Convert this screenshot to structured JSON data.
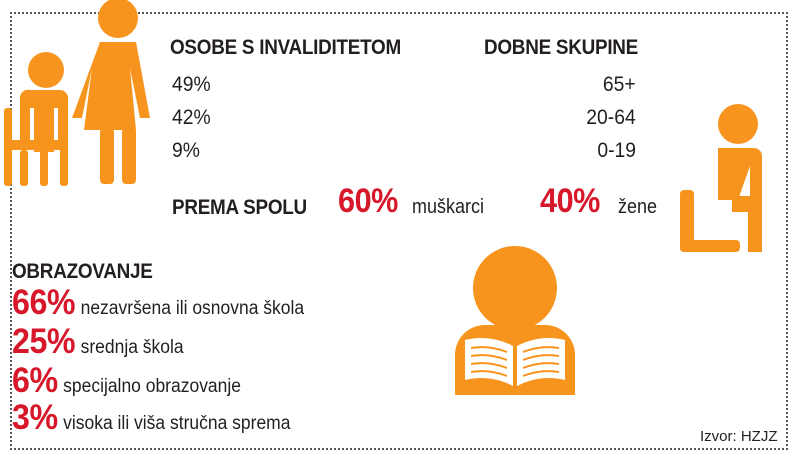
{
  "disability": {
    "heading": "OSOBE S INVALIDITETOM",
    "values": [
      "49%",
      "42%",
      "9%"
    ]
  },
  "age_groups": {
    "heading": "DOBNE SKUPINE",
    "values": [
      "65+",
      "20-64",
      "0-19"
    ]
  },
  "gender": {
    "heading": "PREMA SPOLU",
    "male_pct": "60%",
    "male_label": "muškarci",
    "female_pct": "40%",
    "female_label": "žene"
  },
  "education": {
    "heading": "OBRAZOVANJE",
    "items": [
      {
        "pct": "66%",
        "label": "nezavršena ili osnovna škola"
      },
      {
        "pct": "25%",
        "label": "srednja škola"
      },
      {
        "pct": "6%",
        "label": "specijalno obrazovanje"
      },
      {
        "pct": "3%",
        "label": "visoka ili viša stručna sprema"
      }
    ]
  },
  "source": "Izvor: HZJZ",
  "colors": {
    "accent_orange": "#f7941d",
    "accent_red": "#d7182a",
    "text": "#231f20"
  },
  "icons": [
    "wheelchair-user-icon",
    "standing-woman-icon",
    "seated-person-icon",
    "reading-person-icon"
  ]
}
